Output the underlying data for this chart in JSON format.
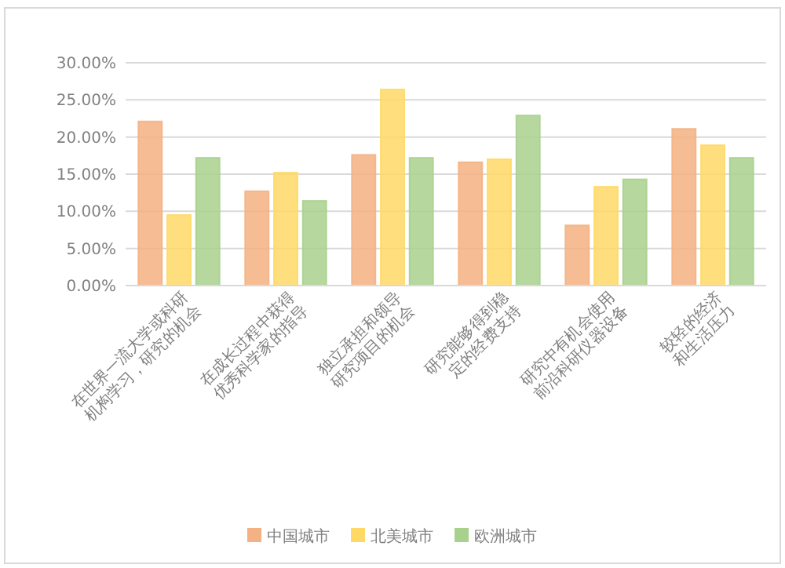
{
  "chart_data": {
    "type": "bar",
    "categories": [
      "在世界一流大学或科研机构学习，研究的机会",
      "在成长过程中获得优秀科学家的指导",
      "独立承担和领导研究项目的机会",
      "研究能够得到稳定的经费支持",
      "研究中有机会使用前沿科研仪器设备",
      "较轻的经济和生活压力"
    ],
    "series": [
      {
        "name": "中国城市",
        "color": "#f4b183",
        "values": [
          22.1,
          12.7,
          17.6,
          16.6,
          8.1,
          21.1
        ]
      },
      {
        "name": "北美城市",
        "color": "#ffd966",
        "values": [
          9.5,
          15.2,
          26.4,
          17.0,
          13.3,
          18.9
        ]
      },
      {
        "name": "欧洲城市",
        "color": "#a9d18e",
        "values": [
          17.2,
          11.4,
          17.2,
          22.9,
          14.3,
          17.2
        ]
      }
    ],
    "ylim": [
      0,
      30
    ],
    "yticks": [
      {
        "value": 0,
        "label": "0.00%"
      },
      {
        "value": 5,
        "label": "5.00%"
      },
      {
        "value": 10,
        "label": "10.00%"
      },
      {
        "value": 15,
        "label": "15.00%"
      },
      {
        "value": 20,
        "label": "20.00%"
      },
      {
        "value": 25,
        "label": "25.00%"
      },
      {
        "value": 30,
        "label": "30.00%"
      }
    ],
    "grid": "y",
    "legend": "bottom"
  }
}
